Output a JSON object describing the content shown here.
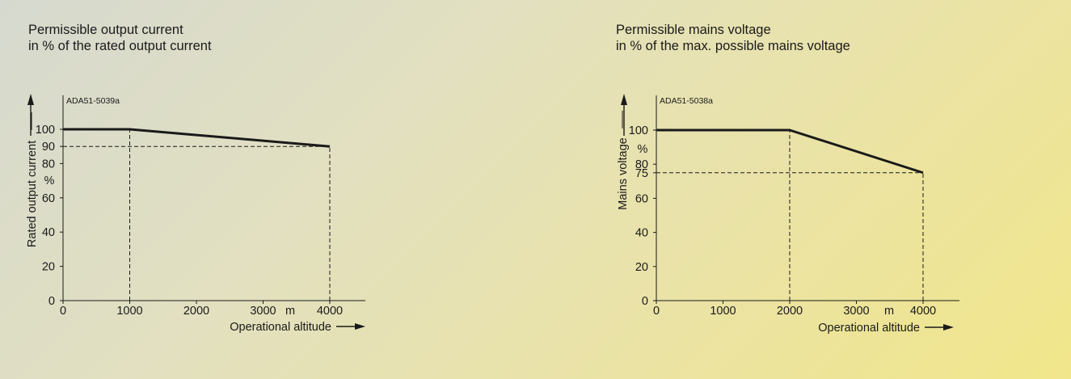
{
  "panels": [
    {
      "title_line1": "Permissible output current",
      "title_line2": "in % of the rated output current"
    },
    {
      "title_line1": "Permissible mains voltage",
      "title_line2": "in % of the max. possible mains voltage"
    }
  ],
  "chart_data": [
    {
      "type": "line",
      "code": "ADA51-5039a",
      "ylabel": "Rated output current",
      "yunit": "%",
      "xlabel": "Operational altitude",
      "xunit": "m",
      "xlim": [
        0,
        4500
      ],
      "ylim": [
        0,
        100
      ],
      "xticks": [
        {
          "value": 0,
          "label": "0"
        },
        {
          "value": 1000,
          "label": "1000"
        },
        {
          "value": 2000,
          "label": "2000"
        },
        {
          "value": 3000,
          "label": "3000"
        },
        {
          "value": 4000,
          "label": "4000"
        }
      ],
      "yticks": [
        {
          "value": 0,
          "label": "0"
        },
        {
          "value": 20,
          "label": "20"
        },
        {
          "value": 40,
          "label": "40"
        },
        {
          "value": 60,
          "label": "60"
        },
        {
          "value": 80,
          "label": "80"
        },
        {
          "value": 90,
          "label": "90"
        },
        {
          "value": 100,
          "label": "100"
        }
      ],
      "series": [
        {
          "x": [
            0,
            1000,
            4000
          ],
          "y": [
            100,
            100,
            90
          ]
        }
      ],
      "reference_lines": [
        {
          "x1": 1000,
          "y1": 0,
          "x2": 1000,
          "y2": 100
        },
        {
          "x1": 4000,
          "y1": 0,
          "x2": 4000,
          "y2": 90
        },
        {
          "x1": 0,
          "y1": 90,
          "x2": 4000,
          "y2": 90
        }
      ]
    },
    {
      "type": "line",
      "code": "ADA51-5038a",
      "ylabel": "Mains voltage",
      "yunit": "%",
      "xlabel": "Operational altitude",
      "xunit": "m",
      "xlim": [
        0,
        4500
      ],
      "ylim": [
        0,
        100
      ],
      "xticks": [
        {
          "value": 0,
          "label": "0"
        },
        {
          "value": 1000,
          "label": "1000"
        },
        {
          "value": 2000,
          "label": "2000"
        },
        {
          "value": 3000,
          "label": "3000"
        },
        {
          "value": 4000,
          "label": "4000"
        }
      ],
      "yticks": [
        {
          "value": 0,
          "label": "0"
        },
        {
          "value": 20,
          "label": "20"
        },
        {
          "value": 40,
          "label": "40"
        },
        {
          "value": 60,
          "label": "60"
        },
        {
          "value": 75,
          "label": "75"
        },
        {
          "value": 80,
          "label": "80"
        },
        {
          "value": 100,
          "label": "100"
        }
      ],
      "series": [
        {
          "x": [
            0,
            2000,
            4000
          ],
          "y": [
            100,
            100,
            75
          ]
        }
      ],
      "reference_lines": [
        {
          "x1": 2000,
          "y1": 0,
          "x2": 2000,
          "y2": 100
        },
        {
          "x1": 4000,
          "y1": 0,
          "x2": 4000,
          "y2": 75
        },
        {
          "x1": 0,
          "y1": 75,
          "x2": 4000,
          "y2": 75
        }
      ]
    }
  ]
}
